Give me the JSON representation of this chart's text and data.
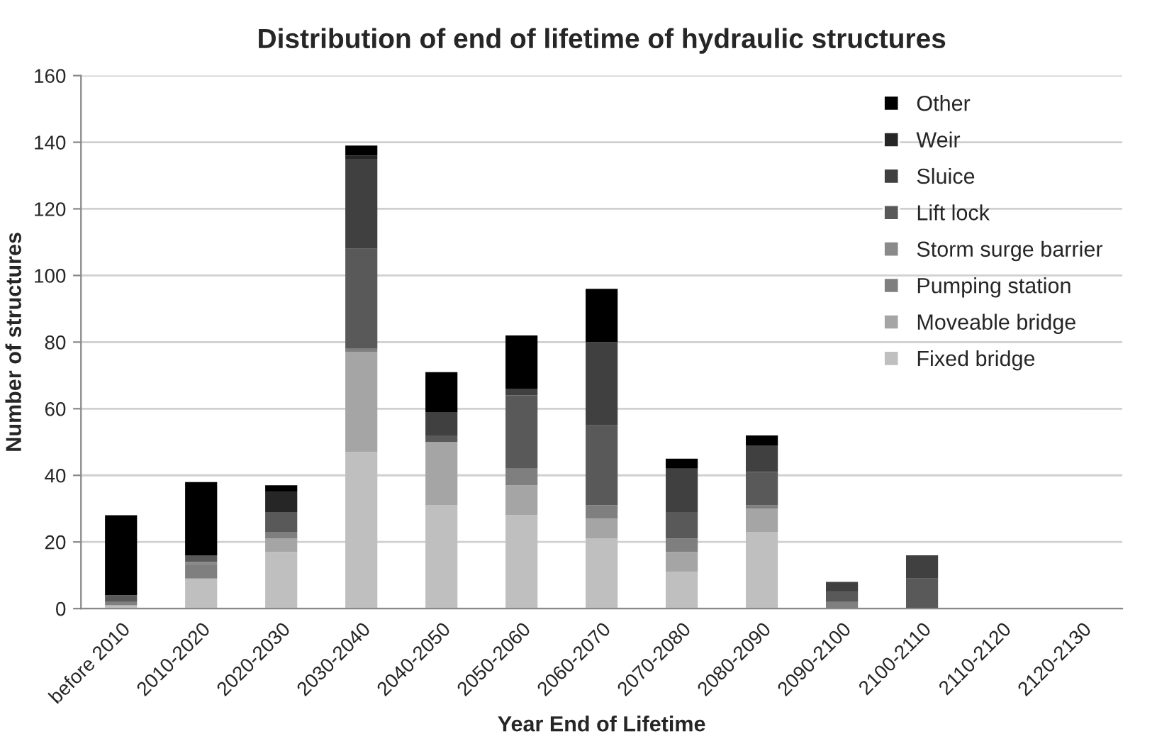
{
  "chart_data": {
    "type": "bar",
    "stacked": true,
    "title": "Distribution of end of lifetime of hydraulic structures",
    "xlabel": "Year End of Lifetime",
    "ylabel": "Number of structures",
    "categories": [
      "before 2010",
      "2010-2020",
      "2020-2030",
      "2030-2040",
      "2040-2050",
      "2050-2060",
      "2060-2070",
      "2070-2080",
      "2080-2090",
      "2090-2100",
      "2100-2110",
      "2110-2120",
      "2120-2130"
    ],
    "series": [
      {
        "name": "Fixed bridge",
        "color": "#bfbfbf",
        "values": [
          1,
          9,
          17,
          47,
          31,
          28,
          21,
          11,
          23,
          0,
          0,
          0,
          0
        ]
      },
      {
        "name": "Moveable bridge",
        "color": "#a5a5a5",
        "values": [
          0,
          0,
          4,
          30,
          19,
          9,
          6,
          6,
          7,
          0,
          0,
          0,
          0
        ]
      },
      {
        "name": "Pumping station",
        "color": "#7f7f7f",
        "values": [
          1,
          4,
          2,
          1,
          0,
          5,
          4,
          4,
          1,
          2,
          0,
          0,
          0
        ]
      },
      {
        "name": "Storm surge barrier",
        "color": "#8a8a8a",
        "values": [
          0,
          1,
          0,
          0,
          0,
          0,
          0,
          0,
          0,
          0,
          0,
          0,
          0
        ]
      },
      {
        "name": "Lift lock",
        "color": "#595959",
        "values": [
          2,
          2,
          6,
          30,
          2,
          22,
          24,
          8,
          10,
          3,
          9,
          0,
          0
        ]
      },
      {
        "name": "Sluice",
        "color": "#404040",
        "values": [
          0,
          0,
          0,
          27,
          7,
          2,
          25,
          13,
          8,
          3,
          7,
          0,
          0
        ]
      },
      {
        "name": "Weir",
        "color": "#262626",
        "values": [
          0,
          0,
          6,
          1,
          0,
          0,
          0,
          0,
          0,
          0,
          0,
          0,
          0
        ]
      },
      {
        "name": "Other",
        "color": "#000000",
        "values": [
          24,
          22,
          2,
          3,
          12,
          16,
          16,
          3,
          3,
          0,
          0,
          0,
          0
        ]
      }
    ],
    "ylim": [
      0,
      160
    ],
    "yticks": [
      0,
      20,
      40,
      60,
      80,
      100,
      120,
      140,
      160
    ],
    "grid": "y",
    "legend": "top right"
  }
}
